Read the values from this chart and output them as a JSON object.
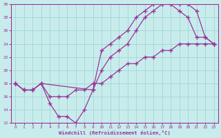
{
  "xlabel": "Windchill (Refroidissement éolien,°C)",
  "xlim": [
    -0.5,
    23.5
  ],
  "ylim": [
    12,
    30
  ],
  "xticks": [
    0,
    1,
    2,
    3,
    4,
    5,
    6,
    7,
    8,
    9,
    10,
    11,
    12,
    13,
    14,
    15,
    16,
    17,
    18,
    19,
    20,
    21,
    22,
    23
  ],
  "yticks": [
    12,
    14,
    16,
    18,
    20,
    22,
    24,
    26,
    28,
    30
  ],
  "bg_color": "#c8ecec",
  "grid_color": "#a8d8d8",
  "line_color": "#993399",
  "line1_x": [
    0,
    1,
    2,
    3,
    4,
    5,
    6,
    7,
    8,
    9,
    10,
    11,
    12,
    13,
    14,
    15,
    16,
    17,
    18,
    19,
    20,
    21,
    22,
    23
  ],
  "line1_y": [
    18,
    17,
    17,
    18,
    15,
    13,
    13,
    12,
    14,
    17,
    23,
    24,
    25,
    26,
    28,
    29,
    30,
    30,
    30,
    29,
    28,
    25,
    25,
    24
  ],
  "line2_x": [
    0,
    1,
    2,
    3,
    9,
    10,
    11,
    12,
    13,
    14,
    15,
    16,
    17,
    18,
    19,
    20,
    21,
    22,
    23
  ],
  "line2_y": [
    18,
    17,
    17,
    18,
    17,
    20,
    22,
    23,
    24,
    26,
    28,
    29,
    30,
    30,
    30,
    30,
    29,
    25,
    24
  ],
  "line3_x": [
    0,
    1,
    2,
    3,
    4,
    5,
    6,
    7,
    8,
    9,
    10,
    11,
    12,
    13,
    14,
    15,
    16,
    17,
    18,
    19,
    20,
    21,
    22,
    23
  ],
  "line3_y": [
    18,
    17,
    17,
    18,
    16,
    16,
    16,
    17,
    17,
    18,
    18,
    19,
    20,
    21,
    21,
    22,
    22,
    23,
    23,
    24,
    24,
    24,
    24,
    24
  ]
}
